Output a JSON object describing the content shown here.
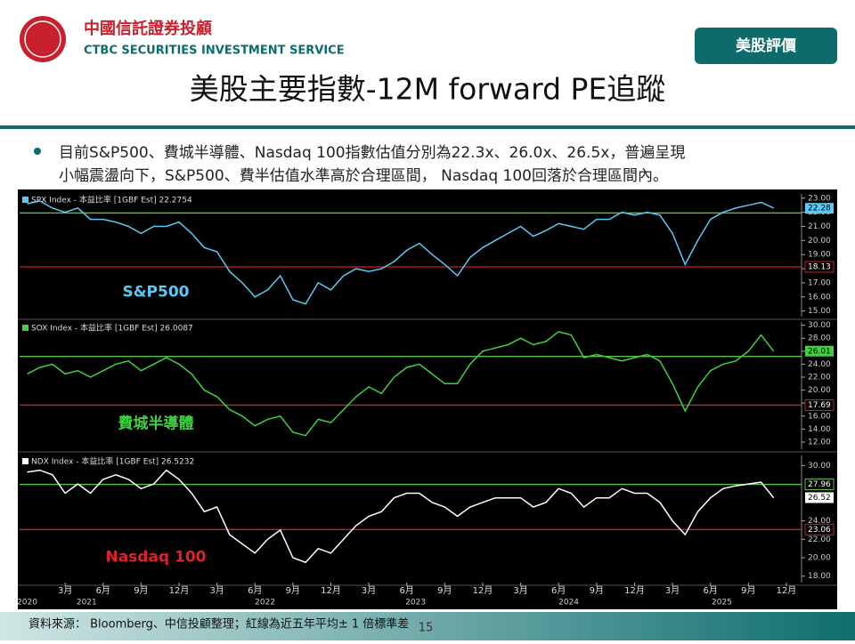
{
  "header": {
    "company_zh": "中國信託證券投顧",
    "company_en": "CTBC SECURITIES INVESTMENT SERVICE",
    "badge": "美股評價",
    "title": "美股主要指數-12M forward PE追蹤"
  },
  "bullet": [
    "目前S&P500、費城半導體、Nasdaq  100指數估值分別為22.3x、26.0x、26.5x，普遍呈現",
    "小幅震盪向下，S&P500、費半估值水準高於合理區間， Nasdaq 100回落於合理區間內。"
  ],
  "xaxis": {
    "xlim": [
      -0.6,
      61.2
    ],
    "xticks": [
      {
        "value": 3,
        "label": "3月"
      },
      {
        "value": 6,
        "label": "6月"
      },
      {
        "value": 9,
        "label": "9月"
      },
      {
        "value": 12,
        "label": "12月"
      },
      {
        "value": 15,
        "label": "3月"
      },
      {
        "value": 18,
        "label": "6月"
      },
      {
        "value": 21,
        "label": "9月"
      },
      {
        "value": 24,
        "label": "12月"
      },
      {
        "value": 27,
        "label": "3月"
      },
      {
        "value": 30,
        "label": "6月"
      },
      {
        "value": 33,
        "label": "9月"
      },
      {
        "value": 36,
        "label": "12月"
      },
      {
        "value": 39,
        "label": "3月"
      },
      {
        "value": 42,
        "label": "6月"
      },
      {
        "value": 45,
        "label": "9月"
      },
      {
        "value": 48,
        "label": "12月"
      },
      {
        "value": 51,
        "label": "3月"
      },
      {
        "value": 54,
        "label": "6月"
      },
      {
        "value": 57,
        "label": "9月"
      },
      {
        "value": 60,
        "label": "12月"
      }
    ],
    "years": [
      {
        "value": 0,
        "label": "2020"
      },
      {
        "value": 4.7,
        "label": "2021"
      },
      {
        "value": 18.8,
        "label": "2022"
      },
      {
        "value": 30.7,
        "label": "2023"
      },
      {
        "value": 42.8,
        "label": "2024"
      },
      {
        "value": 54.9,
        "label": "2025"
      }
    ]
  },
  "chart_data": [
    {
      "type": "line",
      "label": "S&P500",
      "label_color": "#5bc8f5",
      "series": [
        {
          "name": "SPX Index - 本益比率 [1GBF Est] 22.2754",
          "color": "#5bc8f5",
          "values": [
            22.6,
            22.8,
            22.3,
            22.0,
            22.3,
            21.5,
            21.5,
            21.3,
            21.0,
            20.5,
            21.0,
            21.0,
            21.3,
            20.5,
            19.5,
            19.2,
            17.8,
            17.0,
            16.0,
            16.5,
            17.5,
            15.8,
            15.5,
            17.0,
            16.5,
            17.5,
            18.0,
            17.8,
            18.0,
            18.5,
            19.3,
            19.8,
            19.0,
            18.3,
            17.5,
            18.8,
            19.5,
            20.0,
            20.5,
            21.0,
            20.3,
            20.7,
            21.2,
            21.0,
            20.8,
            21.5,
            21.5,
            22.0,
            21.8,
            22.0,
            21.8,
            20.5,
            18.3,
            20.0,
            21.5,
            22.0,
            22.3,
            22.5,
            22.7,
            22.3
          ]
        }
      ],
      "ylim": [
        14.6,
        23.3
      ],
      "yticks": [
        {
          "value": 15,
          "label": "15.00"
        },
        {
          "value": 16,
          "label": "16.00"
        },
        {
          "value": 17,
          "label": "17.00"
        },
        {
          "value": 18,
          "label": "18.00"
        },
        {
          "value": 19,
          "label": "19.00"
        },
        {
          "value": 20,
          "label": "20.00"
        },
        {
          "value": 21,
          "label": "21.00"
        },
        {
          "value": 22,
          "label": "22.00"
        },
        {
          "value": 23,
          "label": "23.00"
        }
      ],
      "hlines": [
        {
          "value": 21.95,
          "color": "#5cc24a"
        },
        {
          "value": 18.13,
          "label": "18.13",
          "color": "#c8202c"
        }
      ],
      "last_label": {
        "value": 22.28,
        "label": "22.28"
      }
    },
    {
      "type": "line",
      "label": "費城半導體",
      "label_color": "#3fd13f",
      "series": [
        {
          "name": "SOX Index - 本益比率 [1GBF Est] 26.0087",
          "color": "#3fd13f",
          "values": [
            22.5,
            23.5,
            24.0,
            22.5,
            23.0,
            22.0,
            23.0,
            24.0,
            24.5,
            23.0,
            24.0,
            25.0,
            24.0,
            22.5,
            20.0,
            19.0,
            17.0,
            16.0,
            14.5,
            15.5,
            16.0,
            13.5,
            13.0,
            15.5,
            15.0,
            17.0,
            19.0,
            20.5,
            19.5,
            22.0,
            23.5,
            24.0,
            22.5,
            21.0,
            21.0,
            24.0,
            26.0,
            26.5,
            27.0,
            28.0,
            27.0,
            27.5,
            29.0,
            28.5,
            25.0,
            25.5,
            25.0,
            24.5,
            25.0,
            25.5,
            24.5,
            21.0,
            16.8,
            20.5,
            23.0,
            24.0,
            24.5,
            26.0,
            28.5,
            26.0
          ]
        }
      ],
      "ylim": [
        10.9,
        30.5
      ],
      "yticks": [
        {
          "value": 12,
          "label": "12.00"
        },
        {
          "value": 14,
          "label": "14.00"
        },
        {
          "value": 16,
          "label": "16.00"
        },
        {
          "value": 18,
          "label": "18.00"
        },
        {
          "value": 20,
          "label": "20.00"
        },
        {
          "value": 22,
          "label": "22.00"
        },
        {
          "value": 24,
          "label": "24.00"
        },
        {
          "value": 26,
          "label": "26.00"
        },
        {
          "value": 28,
          "label": "28.00"
        },
        {
          "value": 30,
          "label": "30.00"
        }
      ],
      "hlines": [
        {
          "value": 25.2,
          "color": "#5cc24a"
        },
        {
          "value": 17.69,
          "label": "17.69",
          "color": "#c8202c"
        }
      ],
      "last_label": {
        "value": 26.01,
        "label": "26.01"
      }
    },
    {
      "type": "line",
      "label": "Nasdaq 100",
      "label_color": "#e0202a",
      "series": [
        {
          "name": "NDX Index - 本益比率 [1GBF Est] 26.5232",
          "color": "#ffffff",
          "values": [
            29.3,
            29.5,
            29.0,
            27.0,
            28.0,
            27.0,
            28.5,
            29.0,
            28.5,
            27.5,
            28.0,
            29.5,
            28.5,
            27.0,
            25.0,
            25.5,
            22.5,
            21.5,
            20.5,
            22.0,
            23.0,
            20.0,
            19.5,
            21.0,
            20.5,
            22.0,
            23.5,
            24.5,
            25.0,
            26.5,
            27.0,
            27.0,
            26.0,
            25.5,
            24.5,
            25.5,
            26.0,
            26.5,
            26.5,
            26.5,
            25.5,
            26.0,
            27.5,
            27.0,
            25.5,
            26.5,
            26.5,
            27.5,
            27.0,
            27.0,
            26.0,
            24.0,
            22.5,
            25.0,
            26.5,
            27.5,
            27.8,
            28.0,
            28.2,
            26.5
          ]
        }
      ],
      "ylim": [
        17.3,
        31.1
      ],
      "yticks": [
        {
          "value": 18,
          "label": "18.00"
        },
        {
          "value": 20,
          "label": "20.00"
        },
        {
          "value": 22,
          "label": "22.00"
        },
        {
          "value": 24,
          "label": "24.00"
        },
        {
          "value": 30,
          "label": "30.00"
        }
      ],
      "hlines": [
        {
          "value": 27.96,
          "label": "27.96",
          "color": "#5cc24a"
        },
        {
          "value": 23.06,
          "label": "23.06",
          "color": "#c8202c"
        }
      ],
      "last_label": {
        "value": 26.52,
        "label": "26.52"
      }
    }
  ],
  "footer": {
    "source": "資料來源： Bloomberg、中信投顧整理；紅線為近五年平均± 1 倍標準差",
    "page": "15"
  }
}
